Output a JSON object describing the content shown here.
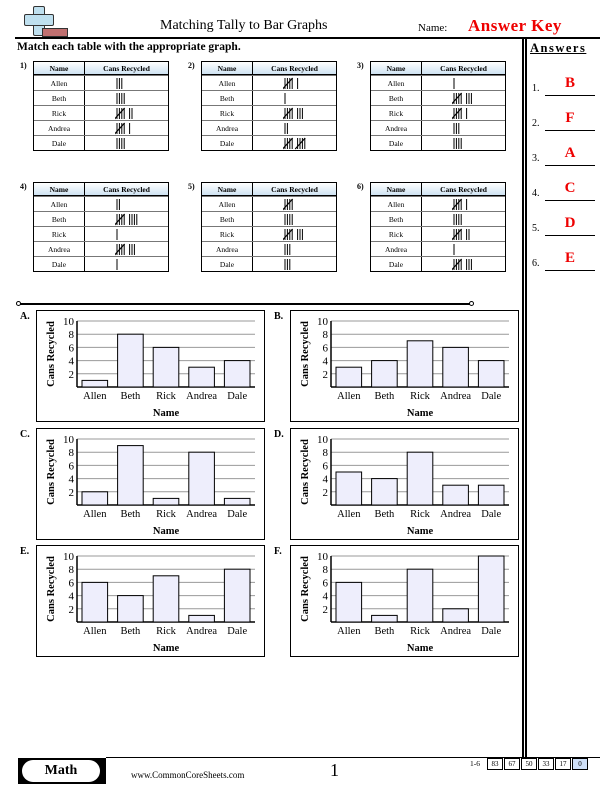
{
  "header": {
    "title": "Matching Tally to Bar Graphs",
    "name_label": "Name:",
    "answer_key": "Answer Key",
    "instructions": "Match each table with the appropriate graph."
  },
  "answers": {
    "title": "Answers",
    "items": [
      {
        "num": "1.",
        "letter": "B"
      },
      {
        "num": "2.",
        "letter": "F"
      },
      {
        "num": "3.",
        "letter": "A"
      },
      {
        "num": "4.",
        "letter": "C"
      },
      {
        "num": "5.",
        "letter": "D"
      },
      {
        "num": "6.",
        "letter": "E"
      }
    ]
  },
  "tables": {
    "col_name": "Name",
    "col_cans": "Cans Recycled",
    "names": [
      "Allen",
      "Beth",
      "Rick",
      "Andrea",
      "Dale"
    ],
    "items": [
      {
        "label": "1)",
        "tallies": [
          3,
          4,
          7,
          6,
          4
        ]
      },
      {
        "label": "2)",
        "tallies": [
          6,
          1,
          8,
          2,
          10
        ]
      },
      {
        "label": "3)",
        "tallies": [
          1,
          8,
          6,
          3,
          4
        ]
      },
      {
        "label": "4)",
        "tallies": [
          2,
          9,
          1,
          8,
          1
        ]
      },
      {
        "label": "5)",
        "tallies": [
          5,
          4,
          8,
          3,
          3
        ]
      },
      {
        "label": "6)",
        "tallies": [
          6,
          4,
          7,
          1,
          8
        ]
      }
    ]
  },
  "chart_data": [
    {
      "type": "bar",
      "label": "A.",
      "categories": [
        "Allen",
        "Beth",
        "Rick",
        "Andrea",
        "Dale"
      ],
      "values": [
        1,
        8,
        6,
        3,
        4
      ],
      "xlabel": "Name",
      "ylabel": "Cans Recycled",
      "ylim": [
        0,
        10
      ],
      "yticks": [
        2,
        4,
        6,
        8,
        10
      ],
      "grid": true
    },
    {
      "type": "bar",
      "label": "B.",
      "categories": [
        "Allen",
        "Beth",
        "Rick",
        "Andrea",
        "Dale"
      ],
      "values": [
        3,
        4,
        7,
        6,
        4
      ],
      "xlabel": "Name",
      "ylabel": "Cans Recycled",
      "ylim": [
        0,
        10
      ],
      "yticks": [
        2,
        4,
        6,
        8,
        10
      ],
      "grid": true
    },
    {
      "type": "bar",
      "label": "C.",
      "categories": [
        "Allen",
        "Beth",
        "Rick",
        "Andrea",
        "Dale"
      ],
      "values": [
        2,
        9,
        1,
        8,
        1
      ],
      "xlabel": "Name",
      "ylabel": "Cans Recycled",
      "ylim": [
        0,
        10
      ],
      "yticks": [
        2,
        4,
        6,
        8,
        10
      ],
      "grid": true
    },
    {
      "type": "bar",
      "label": "D.",
      "categories": [
        "Allen",
        "Beth",
        "Rick",
        "Andrea",
        "Dale"
      ],
      "values": [
        5,
        4,
        8,
        3,
        3
      ],
      "xlabel": "Name",
      "ylabel": "Cans Recycled",
      "ylim": [
        0,
        10
      ],
      "yticks": [
        2,
        4,
        6,
        8,
        10
      ],
      "grid": true
    },
    {
      "type": "bar",
      "label": "E.",
      "categories": [
        "Allen",
        "Beth",
        "Rick",
        "Andrea",
        "Dale"
      ],
      "values": [
        6,
        4,
        7,
        1,
        8
      ],
      "xlabel": "Name",
      "ylabel": "Cans Recycled",
      "ylim": [
        0,
        10
      ],
      "yticks": [
        2,
        4,
        6,
        8,
        10
      ],
      "grid": true
    },
    {
      "type": "bar",
      "label": "F.",
      "categories": [
        "Allen",
        "Beth",
        "Rick",
        "Andrea",
        "Dale"
      ],
      "values": [
        6,
        1,
        8,
        2,
        10
      ],
      "xlabel": "Name",
      "ylabel": "Cans Recycled",
      "ylim": [
        0,
        10
      ],
      "yticks": [
        2,
        4,
        6,
        8,
        10
      ],
      "grid": true
    }
  ],
  "colors": {
    "bar_fill": "#eeeefc",
    "answer": "#ee0000",
    "table_header": "#cfe3f3"
  },
  "footer": {
    "subject": "Math",
    "url": "www.CommonCoreSheets.com",
    "page": "1",
    "range": "1-6",
    "scores": [
      "83",
      "67",
      "50",
      "33",
      "17",
      "0"
    ]
  }
}
